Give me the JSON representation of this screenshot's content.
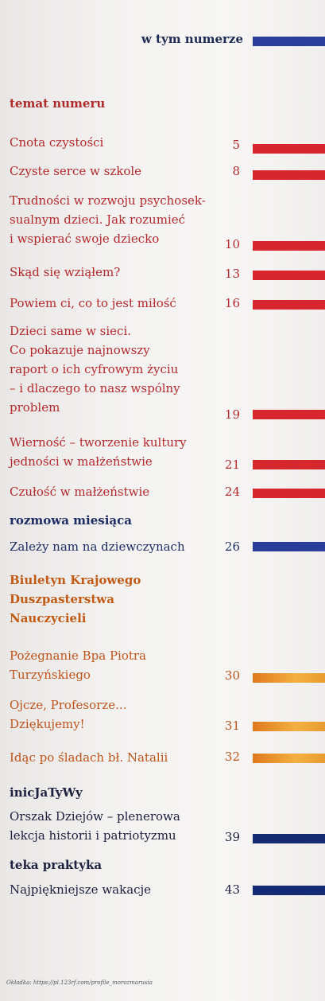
{
  "header": {
    "title": "w tym numerze"
  },
  "sections": {
    "temat": "temat numeru",
    "rozmowa": "rozmowa miesiąca",
    "biuletyn": [
      "Biuletyn Krajowego",
      "Duszpasterstwa",
      "Nauczycieli"
    ],
    "inicjatywy": "inicJaTyWy",
    "teka": "teka praktyka"
  },
  "items": [
    {
      "lines": [
        "Cnota czystości"
      ],
      "page": "5"
    },
    {
      "lines": [
        "Czyste serce w szkole"
      ],
      "page": "8"
    },
    {
      "lines": [
        "Trudności w rozwoju psychosek-",
        "sualnym dzieci. Jak rozumieć",
        "i wspierać swoje dziecko"
      ],
      "page": "10"
    },
    {
      "lines": [
        "Skąd się wziąłem?"
      ],
      "page": "13"
    },
    {
      "lines": [
        "Powiem ci, co to jest miłość"
      ],
      "page": "16"
    },
    {
      "lines": [
        "Dzieci same w sieci.",
        "Co pokazuje najnowszy",
        "raport o ich cyfrowym życiu",
        "– i dlaczego to nasz wspólny",
        "problem"
      ],
      "page": "19"
    },
    {
      "lines": [
        "Wierność – tworzenie kultury",
        "jedności w małżeństwie"
      ],
      "page": "21"
    },
    {
      "lines": [
        "Czułość w małżeństwie"
      ],
      "page": "24"
    },
    {
      "lines": [
        "Zależy nam na dziewczynach"
      ],
      "page": "26"
    },
    {
      "lines": [
        "Pożegnanie Bpa Piotra",
        "Turzyńskiego"
      ],
      "page": "30"
    },
    {
      "lines": [
        "Ojcze, Profesorze...",
        "Dziękujemy!"
      ],
      "page": "31"
    },
    {
      "lines": [
        "Idąc po śladach bł. Natalii"
      ],
      "page": "32"
    },
    {
      "lines": [
        "Orszak Dziejów – plenerowa",
        "lekcja historii i patriotyzmu"
      ],
      "page": "39"
    },
    {
      "lines": [
        "Najpiękniejsze wakacje"
      ],
      "page": "43"
    }
  ],
  "footer": {
    "credit": "Okładka: https://pl.123rf.com/profile_morozmarusia"
  },
  "colors": {
    "red": "#d7262e",
    "blue": "#2a3d9a",
    "orange": "#e0791e",
    "navy": "#142a72"
  }
}
